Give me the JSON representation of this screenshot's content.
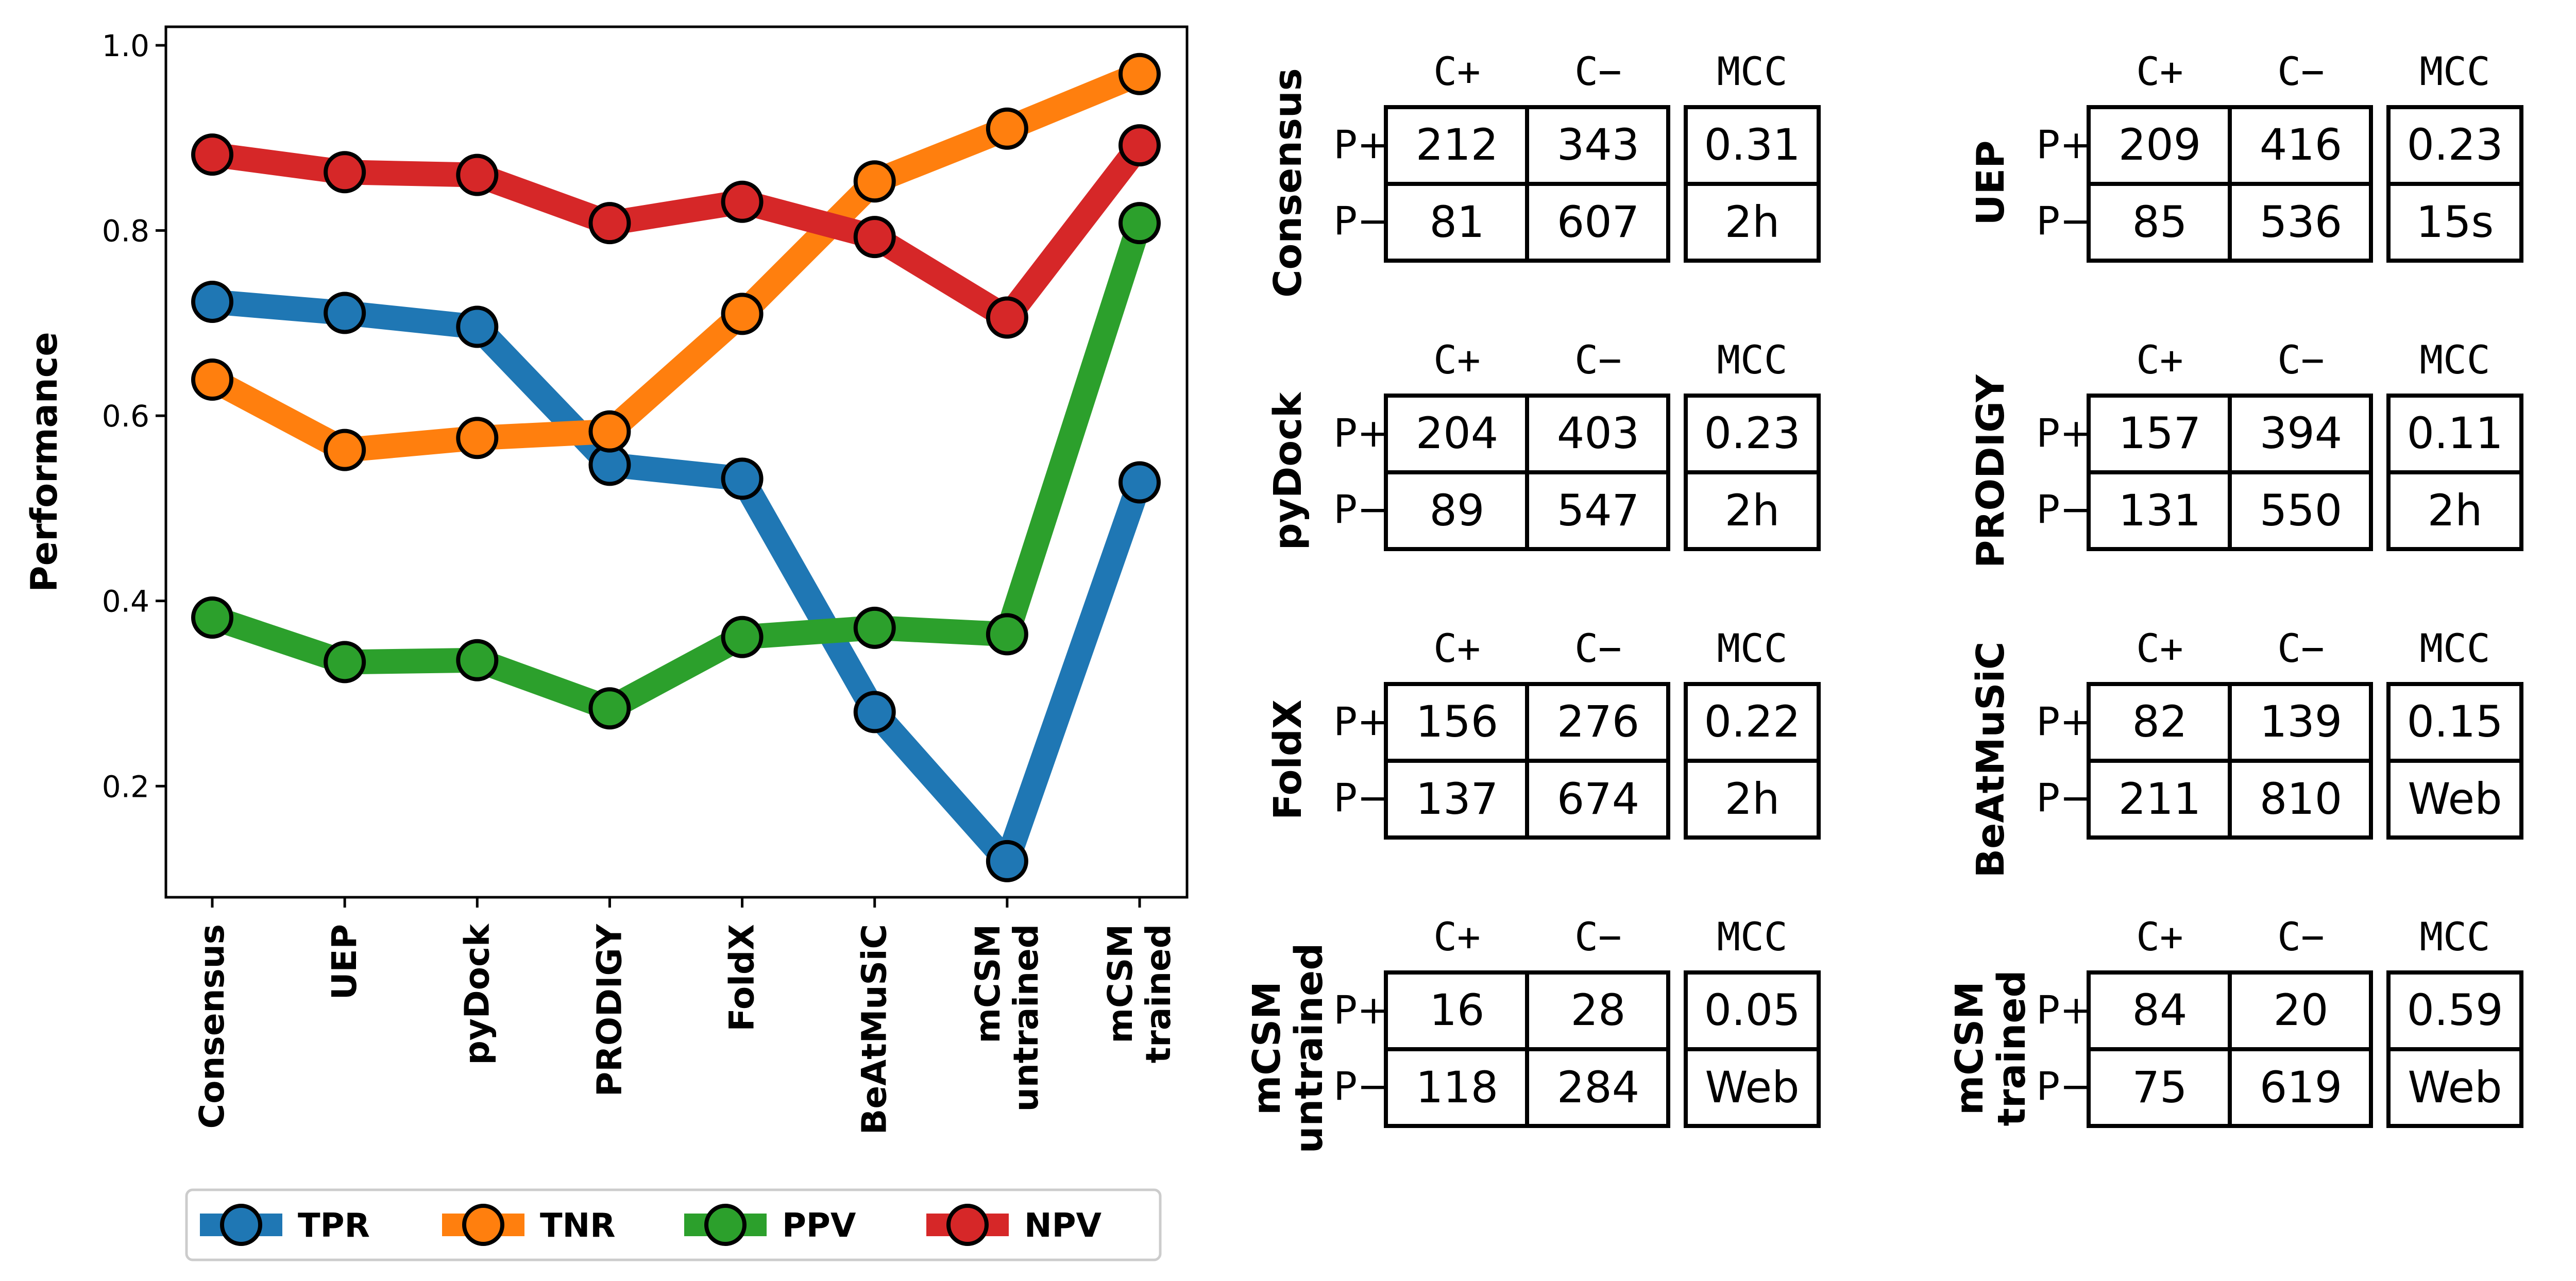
{
  "chart_data": [
    {
      "type": "line",
      "title": "",
      "xlabel": "",
      "ylabel": "Performance",
      "ylim": [
        0.08,
        1.02
      ],
      "yticks": [
        "0.2",
        "0.4",
        "0.6",
        "0.8",
        "1.0"
      ],
      "categories": [
        "Consensus",
        "UEP",
        "pyDock",
        "PRODIGY",
        "FoldX",
        "BeAtMuSiC",
        "mCSM untrained",
        "mCSM trained"
      ],
      "legend_position": "bottom",
      "grid": false,
      "series": [
        {
          "name": "TPR",
          "color": "#1f77b4",
          "values": [
            0.723,
            0.711,
            0.696,
            0.547,
            0.532,
            0.28,
            0.119,
            0.528
          ]
        },
        {
          "name": "TNR",
          "color": "#ff7f0e",
          "values": [
            0.639,
            0.563,
            0.576,
            0.583,
            0.71,
            0.853,
            0.91,
            0.969
          ]
        },
        {
          "name": "PPV",
          "color": "#2ca02c",
          "values": [
            0.382,
            0.334,
            0.336,
            0.284,
            0.361,
            0.371,
            0.364,
            0.808
          ]
        },
        {
          "name": "NPV",
          "color": "#d62728",
          "values": [
            0.882,
            0.863,
            0.86,
            0.808,
            0.831,
            0.793,
            0.706,
            0.892
          ]
        }
      ]
    },
    {
      "type": "table",
      "col_headers": [
        "C+",
        "C−",
        "MCC"
      ],
      "row_headers": [
        "P+",
        "P−"
      ],
      "methods": [
        {
          "name": [
            "Consensus"
          ],
          "tp": "212",
          "fp": "343",
          "mcc": "0.31",
          "fn": "81",
          "tn": "607",
          "time": "2h"
        },
        {
          "name": [
            "UEP"
          ],
          "tp": "209",
          "fp": "416",
          "mcc": "0.23",
          "fn": "85",
          "tn": "536",
          "time": "15s"
        },
        {
          "name": [
            "pyDock"
          ],
          "tp": "204",
          "fp": "403",
          "mcc": "0.23",
          "fn": "89",
          "tn": "547",
          "time": "2h"
        },
        {
          "name": [
            "PRODIGY"
          ],
          "tp": "157",
          "fp": "394",
          "mcc": "0.11",
          "fn": "131",
          "tn": "550",
          "time": "2h"
        },
        {
          "name": [
            "FoldX"
          ],
          "tp": "156",
          "fp": "276",
          "mcc": "0.22",
          "fn": "137",
          "tn": "674",
          "time": "2h"
        },
        {
          "name": [
            "BeAtMuSiC"
          ],
          "tp": "82",
          "fp": "139",
          "mcc": "0.15",
          "fn": "211",
          "tn": "810",
          "time": "Web"
        },
        {
          "name": [
            "mCSM",
            "untrained"
          ],
          "tp": "16",
          "fp": "28",
          "mcc": "0.05",
          "fn": "118",
          "tn": "284",
          "time": "Web"
        },
        {
          "name": [
            "mCSM",
            "trained"
          ],
          "tp": "84",
          "fp": "20",
          "mcc": "0.59",
          "fn": "75",
          "tn": "619",
          "time": "Web"
        }
      ]
    }
  ]
}
